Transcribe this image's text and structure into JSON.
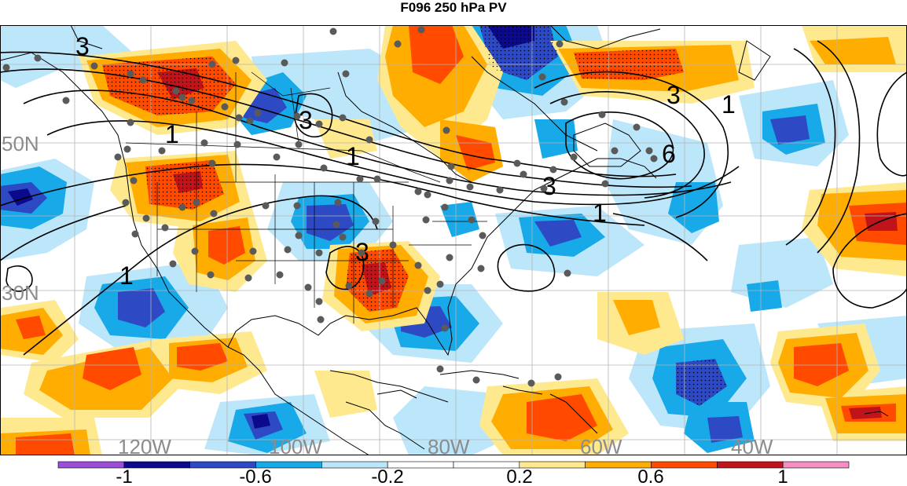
{
  "title": "F096 250 hPa PV",
  "map": {
    "lon_labels": [
      "120W",
      "100W",
      "80W",
      "60W",
      "40W"
    ],
    "lat_labels": [
      "50N",
      "30N"
    ],
    "contour_labels": [
      "3",
      "3",
      "1",
      "1",
      "1",
      "1",
      "3",
      "3",
      "3",
      "6",
      "1"
    ],
    "colors": {
      "grid": "#b4b4b4",
      "contour": "#000000",
      "coast": "#000000",
      "station": "#5a5a5a",
      "axis_label": "#8c8c8c"
    }
  },
  "colorbar": {
    "tick_labels": [
      "-1",
      "-0.6",
      "-0.2",
      "0.2",
      "0.6",
      "1"
    ],
    "colors": [
      "#9b4fd9",
      "#0c0a8c",
      "#2d49c4",
      "#17a9e8",
      "#bce6fa",
      "#ffffff",
      "#ffffff",
      "#ffe98f",
      "#ffad00",
      "#ff4a00",
      "#c0141a",
      "#f58ec2"
    ]
  }
}
